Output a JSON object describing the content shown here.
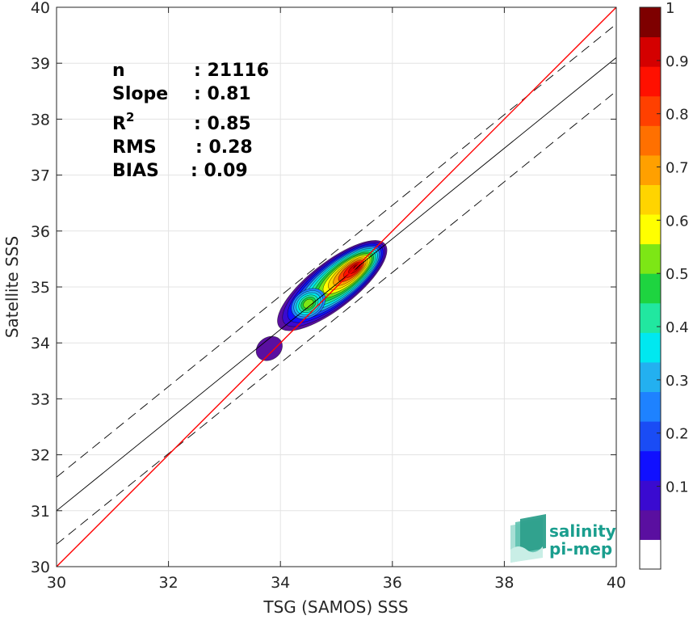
{
  "chart_data": {
    "type": "scatter",
    "subtype": "density-contour",
    "xlabel": "TSG (SAMOS) SSS",
    "ylabel": "Satellite SSS",
    "xlim": [
      30,
      40
    ],
    "ylim": [
      30,
      40
    ],
    "xticks": [
      30,
      32,
      34,
      36,
      38,
      40
    ],
    "yticks": [
      30,
      31,
      32,
      33,
      34,
      35,
      36,
      37,
      38,
      39,
      40
    ],
    "grid": true,
    "stats": [
      {
        "label": "n",
        "value": ": 21116"
      },
      {
        "label": "Slope",
        "value": ": 0.81"
      },
      {
        "label": "R",
        "sup": "2",
        "value": ": 0.85"
      },
      {
        "label": "RMS",
        "value": ": 0.28"
      },
      {
        "label": "BIAS",
        "value": ": 0.09"
      }
    ],
    "lines": {
      "one_to_one": {
        "color": "#ff0000",
        "points": [
          [
            30,
            30
          ],
          [
            40,
            40
          ]
        ]
      },
      "regression": {
        "color": "#000000",
        "points": [
          [
            30,
            31.0
          ],
          [
            40,
            39.1
          ]
        ]
      },
      "upper_bound": {
        "color": "#000000",
        "style": "dashed",
        "points": [
          [
            30,
            31.6
          ],
          [
            40,
            39.7
          ]
        ]
      },
      "lower_bound": {
        "color": "#000000",
        "style": "dashed",
        "points": [
          [
            30,
            30.4
          ],
          [
            40,
            38.5
          ]
        ]
      }
    },
    "density_centers": [
      {
        "x": 35.35,
        "y": 35.35,
        "peak": 1.0
      },
      {
        "x": 34.5,
        "y": 34.7,
        "peak": 0.6
      },
      {
        "x": 33.8,
        "y": 33.9,
        "peak": 0.1
      }
    ],
    "colorbar": {
      "range": [
        0,
        1
      ],
      "ticks": [
        0.1,
        0.2,
        0.3,
        0.4,
        0.5,
        0.6,
        0.7,
        0.8,
        0.9,
        1
      ],
      "tick_labels": [
        "0.1",
        "0.2",
        "0.3",
        "0.4",
        "0.5",
        "0.6",
        "0.7",
        "0.8",
        "0.9",
        "1"
      ],
      "colors": [
        "#ffffff",
        "#5a0fa0",
        "#3a0ad0",
        "#1010ff",
        "#1a4cf5",
        "#1e82ff",
        "#23b0f0",
        "#00e8f0",
        "#21e7a0",
        "#1ed440",
        "#7de615",
        "#ffff00",
        "#ffd400",
        "#ffa000",
        "#ff7000",
        "#ff4000",
        "#ff1000",
        "#d40000",
        "#7e0000"
      ]
    }
  },
  "logo": {
    "line1": "salinity",
    "line2": "pi-mep",
    "color": "#1a9e8e"
  }
}
